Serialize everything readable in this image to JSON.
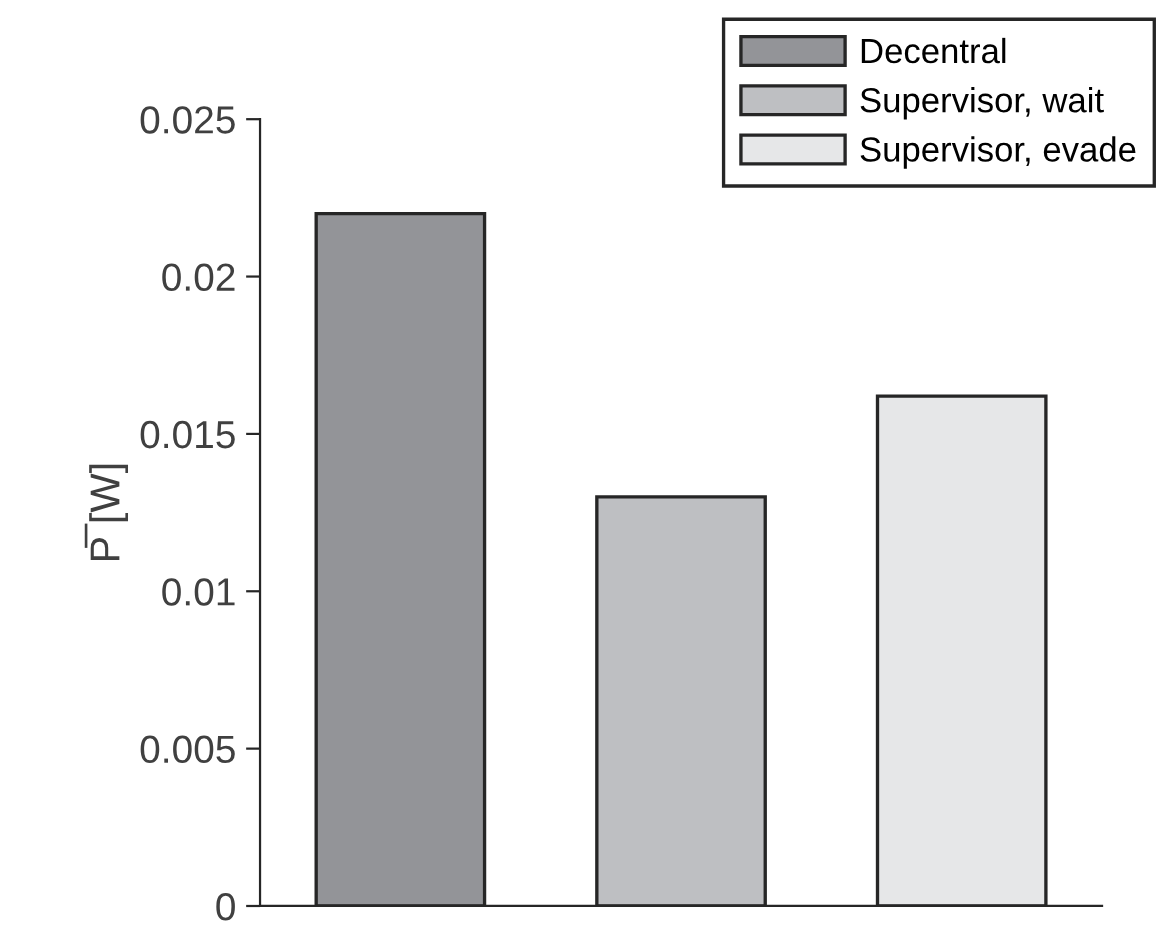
{
  "chart_data": {
    "type": "bar",
    "ylabel": "P̅ [W]",
    "categories": [
      null,
      null,
      null
    ],
    "series": [
      {
        "name": "Decentral",
        "color": "#939498",
        "values": [
          0.022,
          null,
          null
        ]
      },
      {
        "name": "Supervisor, wait",
        "color": "#bebfc2",
        "values": [
          null,
          0.013,
          null
        ]
      },
      {
        "name": "Supervisor, evade",
        "color": "#e6e7e8",
        "values": [
          null,
          null,
          0.0162
        ]
      }
    ],
    "ylim": [
      0,
      0.025
    ],
    "yticks": [
      0,
      0.005,
      0.01,
      0.015,
      0.02,
      0.025
    ],
    "grid": false,
    "legend": "top right"
  }
}
